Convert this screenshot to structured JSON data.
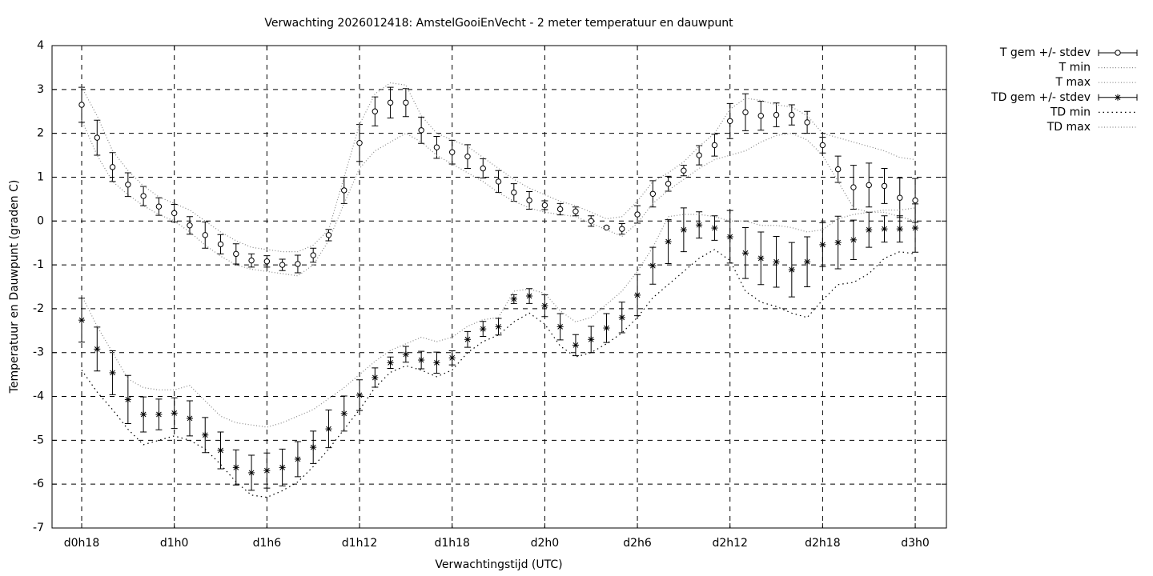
{
  "chart_data": {
    "type": "errorbar",
    "title": "Verwachting 2026012418: AmstelGooiEnVecht - 2 meter temperatuur en dauwpunt",
    "xlabel": "Verwachtingstijd (UTC)",
    "ylabel": "Temperatuur en Dauwpunt (graden C)",
    "x": [
      18,
      19,
      20,
      21,
      22,
      23,
      24,
      25,
      26,
      27,
      28,
      29,
      30,
      31,
      32,
      33,
      34,
      35,
      36,
      37,
      38,
      39,
      40,
      41,
      42,
      43,
      44,
      45,
      46,
      47,
      48,
      49,
      50,
      51,
      52,
      53,
      54,
      55,
      56,
      57,
      58,
      59,
      60,
      61,
      62,
      63,
      64,
      65,
      66,
      67,
      68,
      69,
      70,
      71,
      72
    ],
    "xlim": [
      16.08,
      74.02
    ],
    "xticks": [
      {
        "value": 18,
        "label": "d0h18"
      },
      {
        "value": 24,
        "label": "d1h0"
      },
      {
        "value": 30,
        "label": "d1h6"
      },
      {
        "value": 36,
        "label": "d1h12"
      },
      {
        "value": 42,
        "label": "d1h18"
      },
      {
        "value": 48,
        "label": "d2h0"
      },
      {
        "value": 54,
        "label": "d2h6"
      },
      {
        "value": 60,
        "label": "d2h12"
      },
      {
        "value": 66,
        "label": "d2h18"
      },
      {
        "value": 72,
        "label": "d3h0"
      }
    ],
    "ylim": [
      -7,
      4
    ],
    "yticks": [
      -7,
      -6,
      -5,
      -4,
      -3,
      -2,
      -1,
      0,
      1,
      2,
      3,
      4
    ],
    "grid": true,
    "legend": "outside-right-top",
    "series": [
      {
        "name": "T gem +/- stdev",
        "kind": "errorbar",
        "marker": "circle",
        "color": "#000000",
        "values": [
          2.65,
          1.9,
          1.23,
          0.83,
          0.57,
          0.33,
          0.18,
          -0.1,
          -0.32,
          -0.53,
          -0.75,
          -0.9,
          -0.92,
          -1.0,
          -0.98,
          -0.78,
          -0.32,
          0.7,
          1.78,
          2.5,
          2.7,
          2.7,
          2.07,
          1.68,
          1.57,
          1.47,
          1.2,
          0.9,
          0.65,
          0.47,
          0.36,
          0.27,
          0.22,
          0.0,
          -0.15,
          -0.18,
          0.15,
          0.62,
          0.85,
          1.15,
          1.5,
          1.73,
          2.28,
          2.48,
          2.4,
          2.42,
          2.42,
          2.25,
          1.73,
          1.18,
          0.77,
          0.82,
          0.8,
          0.53,
          0.47
        ],
        "errors": [
          0.4,
          0.4,
          0.33,
          0.27,
          0.22,
          0.2,
          0.2,
          0.2,
          0.3,
          0.22,
          0.23,
          0.15,
          0.13,
          0.13,
          0.2,
          0.16,
          0.13,
          0.3,
          0.42,
          0.33,
          0.35,
          0.32,
          0.3,
          0.25,
          0.27,
          0.27,
          0.22,
          0.25,
          0.2,
          0.2,
          0.1,
          0.13,
          0.1,
          0.12,
          0.02,
          0.12,
          0.2,
          0.3,
          0.17,
          0.12,
          0.22,
          0.25,
          0.4,
          0.42,
          0.33,
          0.27,
          0.23,
          0.25,
          0.18,
          0.3,
          0.5,
          0.5,
          0.4,
          0.45,
          0.5
        ]
      },
      {
        "name": "T min",
        "kind": "line",
        "dash": "1 2.5",
        "color": "#888888",
        "values": [
          2.3,
          1.5,
          0.9,
          0.6,
          0.35,
          0.15,
          0.0,
          -0.25,
          -0.55,
          -0.8,
          -1.0,
          -1.1,
          -1.15,
          -1.2,
          -1.25,
          -1.0,
          -0.45,
          0.4,
          1.2,
          1.6,
          1.8,
          2.0,
          1.8,
          1.5,
          1.3,
          1.1,
          0.9,
          0.65,
          0.45,
          0.3,
          0.2,
          0.15,
          0.1,
          -0.05,
          -0.2,
          -0.35,
          -0.05,
          0.4,
          0.7,
          0.95,
          1.2,
          1.4,
          1.5,
          1.6,
          1.8,
          1.95,
          2.0,
          1.85,
          1.5,
          0.9,
          0.3,
          0.2,
          0.2,
          0.1,
          0.0
        ]
      },
      {
        "name": "T max",
        "kind": "line",
        "dash": "1 2.5",
        "color": "#888888",
        "values": [
          3.05,
          2.4,
          1.6,
          1.15,
          0.8,
          0.55,
          0.4,
          0.25,
          0.0,
          -0.25,
          -0.45,
          -0.6,
          -0.65,
          -0.7,
          -0.7,
          -0.55,
          -0.2,
          1.0,
          2.2,
          2.9,
          3.15,
          3.1,
          2.4,
          2.0,
          1.85,
          1.7,
          1.45,
          1.2,
          0.95,
          0.75,
          0.6,
          0.45,
          0.35,
          0.2,
          0.05,
          0.1,
          0.45,
          0.9,
          1.1,
          1.35,
          1.7,
          2.0,
          2.55,
          2.8,
          2.75,
          2.65,
          2.6,
          2.4,
          2.0,
          1.9,
          1.8,
          1.7,
          1.6,
          1.45,
          1.4
        ]
      },
      {
        "name": "TD gem +/- stdev",
        "kind": "errorbar",
        "marker": "star",
        "color": "#000000",
        "values": [
          -2.26,
          -2.92,
          -3.46,
          -4.07,
          -4.41,
          -4.41,
          -4.38,
          -4.5,
          -4.88,
          -5.23,
          -5.62,
          -5.74,
          -5.69,
          -5.62,
          -5.43,
          -5.16,
          -4.74,
          -4.39,
          -3.97,
          -3.57,
          -3.23,
          -3.04,
          -3.17,
          -3.23,
          -3.12,
          -2.7,
          -2.46,
          -2.41,
          -1.78,
          -1.71,
          -1.93,
          -2.41,
          -2.83,
          -2.7,
          -2.44,
          -2.2,
          -1.69,
          -1.02,
          -0.47,
          -0.2,
          -0.09,
          -0.16,
          -0.36,
          -0.73,
          -0.85,
          -0.93,
          -1.11,
          -0.93,
          -0.54,
          -0.49,
          -0.43,
          -0.2,
          -0.18,
          -0.18,
          -0.16
        ],
        "errors": [
          0.5,
          0.5,
          0.5,
          0.55,
          0.4,
          0.35,
          0.35,
          0.4,
          0.4,
          0.42,
          0.4,
          0.4,
          0.4,
          0.42,
          0.4,
          0.37,
          0.43,
          0.4,
          0.35,
          0.22,
          0.13,
          0.18,
          0.2,
          0.24,
          0.16,
          0.18,
          0.17,
          0.19,
          0.1,
          0.17,
          0.25,
          0.3,
          0.24,
          0.3,
          0.33,
          0.35,
          0.47,
          0.42,
          0.5,
          0.5,
          0.3,
          0.28,
          0.6,
          0.58,
          0.6,
          0.58,
          0.62,
          0.57,
          0.5,
          0.6,
          0.45,
          0.4,
          0.3,
          0.3,
          0.55
        ]
      },
      {
        "name": "TD min",
        "kind": "line",
        "dash": "1.5 4",
        "color": "#000000",
        "values": [
          -3.4,
          -3.9,
          -4.3,
          -4.75,
          -5.1,
          -5.0,
          -4.9,
          -5.0,
          -5.2,
          -5.55,
          -5.95,
          -6.25,
          -6.3,
          -6.15,
          -5.95,
          -5.6,
          -5.2,
          -4.75,
          -4.3,
          -3.8,
          -3.45,
          -3.3,
          -3.4,
          -3.55,
          -3.4,
          -3.0,
          -2.75,
          -2.6,
          -2.3,
          -2.1,
          -2.35,
          -2.85,
          -3.1,
          -3.0,
          -2.8,
          -2.55,
          -2.2,
          -1.75,
          -1.45,
          -1.15,
          -0.85,
          -0.65,
          -0.9,
          -1.6,
          -1.85,
          -1.95,
          -2.1,
          -2.2,
          -1.8,
          -1.45,
          -1.4,
          -1.2,
          -0.85,
          -0.7,
          -0.75
        ]
      },
      {
        "name": "TD max",
        "kind": "line",
        "dash": "1 2.5",
        "color": "#888888",
        "values": [
          -1.7,
          -2.4,
          -3.0,
          -3.6,
          -3.8,
          -3.85,
          -3.85,
          -3.75,
          -4.1,
          -4.45,
          -4.6,
          -4.65,
          -4.7,
          -4.6,
          -4.45,
          -4.3,
          -4.05,
          -3.8,
          -3.5,
          -3.2,
          -2.95,
          -2.8,
          -2.65,
          -2.75,
          -2.65,
          -2.4,
          -2.25,
          -2.2,
          -1.6,
          -1.55,
          -1.65,
          -2.05,
          -2.3,
          -2.2,
          -1.9,
          -1.6,
          -1.15,
          -0.6,
          0.1,
          0.15,
          0.15,
          0.1,
          0.0,
          0.0,
          -0.1,
          -0.1,
          -0.15,
          -0.25,
          -0.2,
          0.05,
          0.15,
          0.2,
          0.25,
          0.25,
          0.3
        ]
      }
    ]
  }
}
